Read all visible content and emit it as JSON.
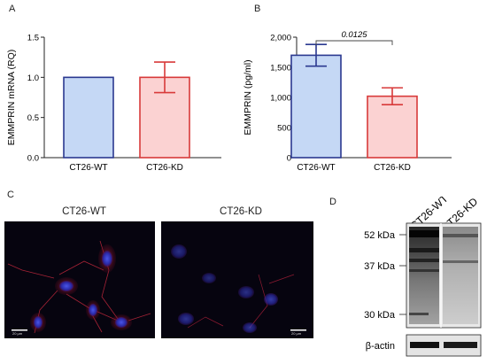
{
  "panels": {
    "a": "A",
    "b": "B",
    "c": "C",
    "d": "D"
  },
  "chart_data": [
    {
      "type": "bar",
      "categories": [
        "CT26-WT",
        "CT26-KD"
      ],
      "values": [
        1.0,
        1.0
      ],
      "errors": [
        0.0,
        0.19
      ],
      "ylabel": "EMMPRIN mRNA (RQ)",
      "ylim": [
        0,
        1.5
      ],
      "yticks": [
        "0.0",
        "0.5",
        "1.0",
        "1.5"
      ],
      "colors": {
        "fill": [
          "#c5d8f5",
          "#fbd2d2"
        ],
        "stroke": [
          "#2b3990",
          "#d83a3a"
        ]
      }
    },
    {
      "type": "bar",
      "categories": [
        "CT26-WT",
        "CT26-KD"
      ],
      "values": [
        1700,
        1020
      ],
      "errors": [
        180,
        140
      ],
      "ylabel": "EMMPRIN (pg/ml)",
      "ylim": [
        0,
        2000
      ],
      "yticks": [
        "0",
        "500",
        "1,000",
        "1,500",
        "2,000"
      ],
      "annotation": "0.0125",
      "colors": {
        "fill": [
          "#c5d8f5",
          "#fbd2d2"
        ],
        "stroke": [
          "#2b3990",
          "#d83a3a"
        ]
      }
    }
  ],
  "microscopy": {
    "left_title": "CT26-WT",
    "right_title": "CT26-KD",
    "scalebar_label": "20 µm"
  },
  "western_blot": {
    "lanes": [
      "CT26-WT",
      "CT26-KD"
    ],
    "markers": [
      "52 kDa",
      "37 kDa",
      "30 kDa"
    ],
    "loading_control": "β-actin"
  }
}
